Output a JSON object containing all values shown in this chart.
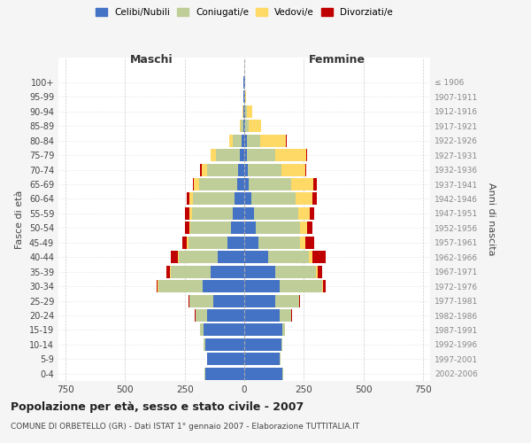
{
  "age_groups": [
    "0-4",
    "5-9",
    "10-14",
    "15-19",
    "20-24",
    "25-29",
    "30-34",
    "35-39",
    "40-44",
    "45-49",
    "50-54",
    "55-59",
    "60-64",
    "65-69",
    "70-74",
    "75-79",
    "80-84",
    "85-89",
    "90-94",
    "95-99",
    "100+"
  ],
  "birth_years": [
    "2002-2006",
    "1997-2001",
    "1992-1996",
    "1987-1991",
    "1982-1986",
    "1977-1981",
    "1972-1976",
    "1967-1971",
    "1962-1966",
    "1957-1961",
    "1952-1956",
    "1947-1951",
    "1942-1946",
    "1937-1941",
    "1932-1936",
    "1927-1931",
    "1922-1926",
    "1917-1921",
    "1912-1916",
    "1907-1911",
    "≤ 1906"
  ],
  "males": {
    "celibi": [
      165,
      155,
      165,
      170,
      155,
      130,
      175,
      140,
      110,
      70,
      55,
      50,
      40,
      30,
      25,
      20,
      10,
      5,
      2,
      2,
      2
    ],
    "coniugati": [
      2,
      2,
      5,
      15,
      50,
      100,
      185,
      170,
      165,
      165,
      170,
      170,
      175,
      160,
      130,
      100,
      40,
      10,
      3,
      0,
      0
    ],
    "vedovi": [
      0,
      0,
      0,
      0,
      1,
      2,
      3,
      3,
      5,
      5,
      5,
      10,
      15,
      20,
      25,
      20,
      15,
      5,
      1,
      0,
      0
    ],
    "divorziati": [
      0,
      0,
      0,
      1,
      2,
      2,
      5,
      15,
      30,
      20,
      20,
      20,
      10,
      5,
      5,
      0,
      0,
      0,
      0,
      0,
      0
    ]
  },
  "females": {
    "celibi": [
      160,
      150,
      155,
      160,
      150,
      130,
      150,
      130,
      100,
      60,
      50,
      40,
      30,
      20,
      15,
      10,
      10,
      5,
      5,
      3,
      2
    ],
    "coniugati": [
      2,
      2,
      5,
      10,
      45,
      100,
      175,
      170,
      170,
      175,
      185,
      185,
      185,
      175,
      140,
      120,
      55,
      15,
      5,
      1,
      0
    ],
    "vedovi": [
      0,
      0,
      0,
      1,
      2,
      2,
      5,
      10,
      15,
      20,
      30,
      50,
      70,
      95,
      100,
      130,
      110,
      50,
      25,
      5,
      2
    ],
    "divorziati": [
      0,
      0,
      0,
      1,
      2,
      2,
      10,
      15,
      55,
      40,
      20,
      20,
      20,
      15,
      5,
      5,
      5,
      0,
      0,
      0,
      0
    ]
  },
  "colors": {
    "celibi": "#4472C4",
    "coniugati": "#BFCE98",
    "vedovi": "#FFD966",
    "divorziati": "#C00000"
  },
  "xlim": 780,
  "title": "Popolazione per età, sesso e stato civile - 2007",
  "subtitle": "COMUNE DI ORBETELLO (GR) - Dati ISTAT 1° gennaio 2007 - Elaborazione TUTTITALIA.IT",
  "ylabel_left": "Fasce di età",
  "ylabel_right": "Anni di nascita",
  "xlabel_left": "Maschi",
  "xlabel_right": "Femmine",
  "bg_color": "#F5F5F5",
  "plot_bg_color": "#FFFFFF",
  "grid_color": "#CCCCCC"
}
